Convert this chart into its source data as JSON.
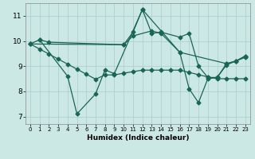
{
  "xlabel": "Humidex (Indice chaleur)",
  "bg_color": "#cce8e4",
  "grid_color": "#aacccc",
  "line_color": "#1a6655",
  "xlim": [
    -0.5,
    23.5
  ],
  "ylim": [
    6.7,
    11.5
  ],
  "xticks": [
    0,
    1,
    2,
    3,
    4,
    5,
    6,
    7,
    8,
    9,
    10,
    11,
    12,
    13,
    14,
    15,
    16,
    17,
    18,
    19,
    20,
    21,
    22,
    23
  ],
  "yticks": [
    7,
    8,
    9,
    10,
    11
  ],
  "line1_x": [
    0,
    1,
    2,
    10,
    11,
    13,
    14,
    16,
    21,
    22,
    23
  ],
  "line1_y": [
    9.88,
    10.05,
    9.95,
    9.85,
    10.2,
    10.4,
    10.3,
    9.55,
    9.1,
    9.2,
    9.4
  ],
  "line2_x": [
    0,
    1,
    2,
    3,
    4,
    5,
    6,
    7,
    8,
    9,
    10,
    11,
    12,
    13,
    14,
    15,
    16,
    17,
    18,
    19,
    20,
    21,
    22,
    23
  ],
  "line2_y": [
    9.88,
    9.68,
    9.48,
    9.28,
    9.08,
    8.88,
    8.68,
    8.48,
    8.65,
    8.65,
    8.72,
    8.78,
    8.84,
    8.84,
    8.84,
    8.84,
    8.84,
    8.75,
    8.66,
    8.57,
    8.5,
    8.5,
    8.5,
    8.5
  ],
  "line3_x": [
    1,
    4,
    5,
    7,
    8,
    9,
    12,
    16,
    17,
    18,
    19,
    20,
    21,
    22,
    23
  ],
  "line3_y": [
    10.05,
    8.6,
    7.1,
    7.9,
    8.85,
    8.7,
    11.25,
    9.55,
    8.1,
    7.55,
    8.5,
    8.55,
    9.05,
    9.2,
    9.4
  ],
  "line4_x": [
    0,
    10,
    11,
    12,
    13,
    14,
    16,
    17,
    18,
    19,
    20,
    21,
    22,
    23
  ],
  "line4_y": [
    9.88,
    9.85,
    10.35,
    11.25,
    10.3,
    10.35,
    10.15,
    10.3,
    9.0,
    8.55,
    8.55,
    9.1,
    9.2,
    9.35
  ]
}
